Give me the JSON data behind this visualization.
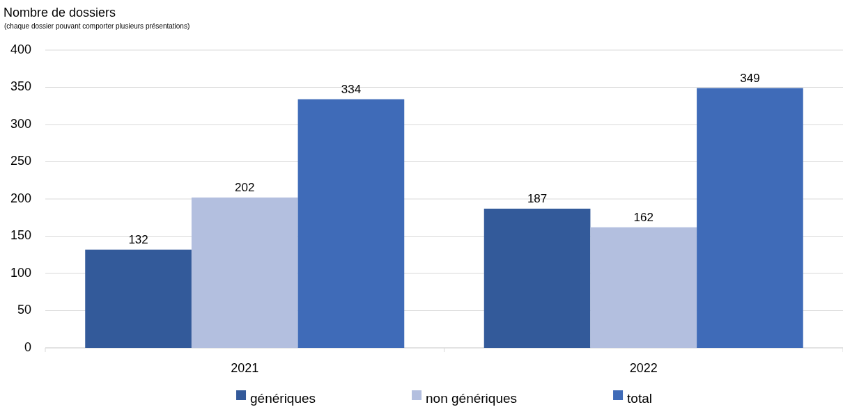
{
  "chart_data": {
    "type": "bar",
    "title": "Nombre de dossiers",
    "subtitle": "(chaque dossier pouvant comporter plusieurs présentations)",
    "categories": [
      "2021",
      "2022"
    ],
    "series": [
      {
        "name": "génériques",
        "color": "#335a9a",
        "values": [
          132,
          187
        ]
      },
      {
        "name": "non génériques",
        "color": "#b3bfdf",
        "values": [
          202,
          162
        ]
      },
      {
        "name": "total",
        "color": "#3f6bb8",
        "values": [
          334,
          349
        ]
      }
    ],
    "ylim": [
      0,
      400
    ],
    "yticks": [
      0,
      50,
      100,
      150,
      200,
      250,
      300,
      350,
      400
    ],
    "grid": "y",
    "legend": "bottom",
    "data_labels": true
  }
}
